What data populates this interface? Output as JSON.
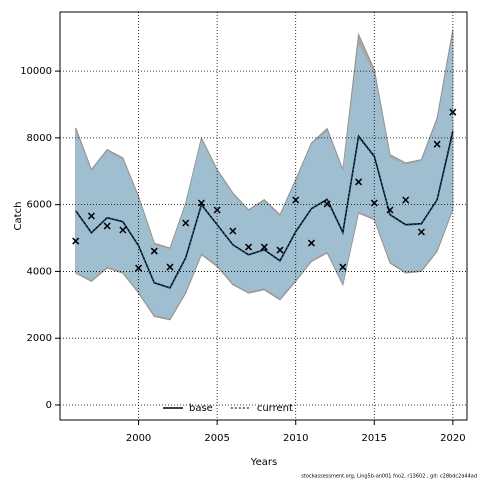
{
  "chart_data": {
    "type": "line",
    "xlabel": "Years",
    "ylabel": "Catch",
    "footnote": "stockassessment.org, Ling5b-an001 fno2, r13602 , git: c28bdc2a44ad",
    "x": [
      1996,
      1997,
      1998,
      1999,
      2000,
      2001,
      2002,
      2003,
      2004,
      2005,
      2006,
      2007,
      2008,
      2009,
      2010,
      2011,
      2012,
      2013,
      2014,
      2015,
      2016,
      2017,
      2018,
      2019,
      2020
    ],
    "series": [
      {
        "name": "base",
        "color": "#000000",
        "band_color": "#a0a0a0",
        "dash": "solid",
        "values": [
          5820,
          5160,
          5610,
          5490,
          4770,
          3660,
          3510,
          4410,
          6000,
          5400,
          4800,
          4500,
          4650,
          4320,
          5190,
          5880,
          6160,
          5170,
          8050,
          7450,
          5700,
          5400,
          5430,
          6150,
          8200
        ],
        "upper": [
          8300,
          7050,
          7650,
          7400,
          6250,
          4850,
          4700,
          6050,
          8000,
          7050,
          6350,
          5850,
          6150,
          5700,
          6750,
          7850,
          8280,
          7050,
          11100,
          10050,
          7500,
          7250,
          7350,
          8600,
          11250
        ],
        "lower": [
          3950,
          3700,
          4100,
          3950,
          3350,
          2650,
          2550,
          3350,
          4500,
          4150,
          3600,
          3350,
          3450,
          3150,
          3700,
          4300,
          4550,
          3600,
          5750,
          5550,
          4250,
          3950,
          4000,
          4600,
          5850
        ]
      },
      {
        "name": "current",
        "color": "#1f4e79",
        "band_color": "#9dc3d8",
        "dash": "dotted",
        "values": [
          5810,
          5150,
          5600,
          5480,
          4760,
          3650,
          3500,
          4400,
          5990,
          5390,
          4790,
          4490,
          4640,
          4310,
          5180,
          5870,
          6140,
          5150,
          8020,
          7430,
          5690,
          5390,
          5420,
          6140,
          8140
        ],
        "upper": [
          8200,
          7000,
          7600,
          7350,
          6200,
          4800,
          4650,
          6000,
          7950,
          7000,
          6300,
          5800,
          6100,
          5650,
          6700,
          7800,
          8200,
          7000,
          10800,
          9900,
          7400,
          7200,
          7300,
          8500,
          11100
        ],
        "lower": [
          4000,
          3750,
          4150,
          4000,
          3400,
          2700,
          2600,
          3400,
          4550,
          4200,
          3650,
          3400,
          3500,
          3200,
          3750,
          4350,
          4600,
          3650,
          5800,
          5600,
          4300,
          4000,
          4050,
          4650,
          5900
        ]
      }
    ],
    "points": {
      "marker": "x",
      "color": "#000000",
      "values": [
        4910,
        5660,
        5360,
        5240,
        4100,
        4610,
        4130,
        5450,
        6050,
        5840,
        5210,
        4730,
        4730,
        4640,
        6140,
        4850,
        6020,
        4130,
        6680,
        6050,
        5840,
        6140,
        5180,
        7810,
        8770
      ]
    },
    "xlim": [
      1995,
      2020.9
    ],
    "ylim": [
      -450,
      11770
    ],
    "xticks": [
      2000,
      2005,
      2010,
      2015,
      2020
    ],
    "yticks": [
      0,
      2000,
      4000,
      6000,
      8000,
      10000
    ],
    "grid": true,
    "legend": "bottom"
  }
}
